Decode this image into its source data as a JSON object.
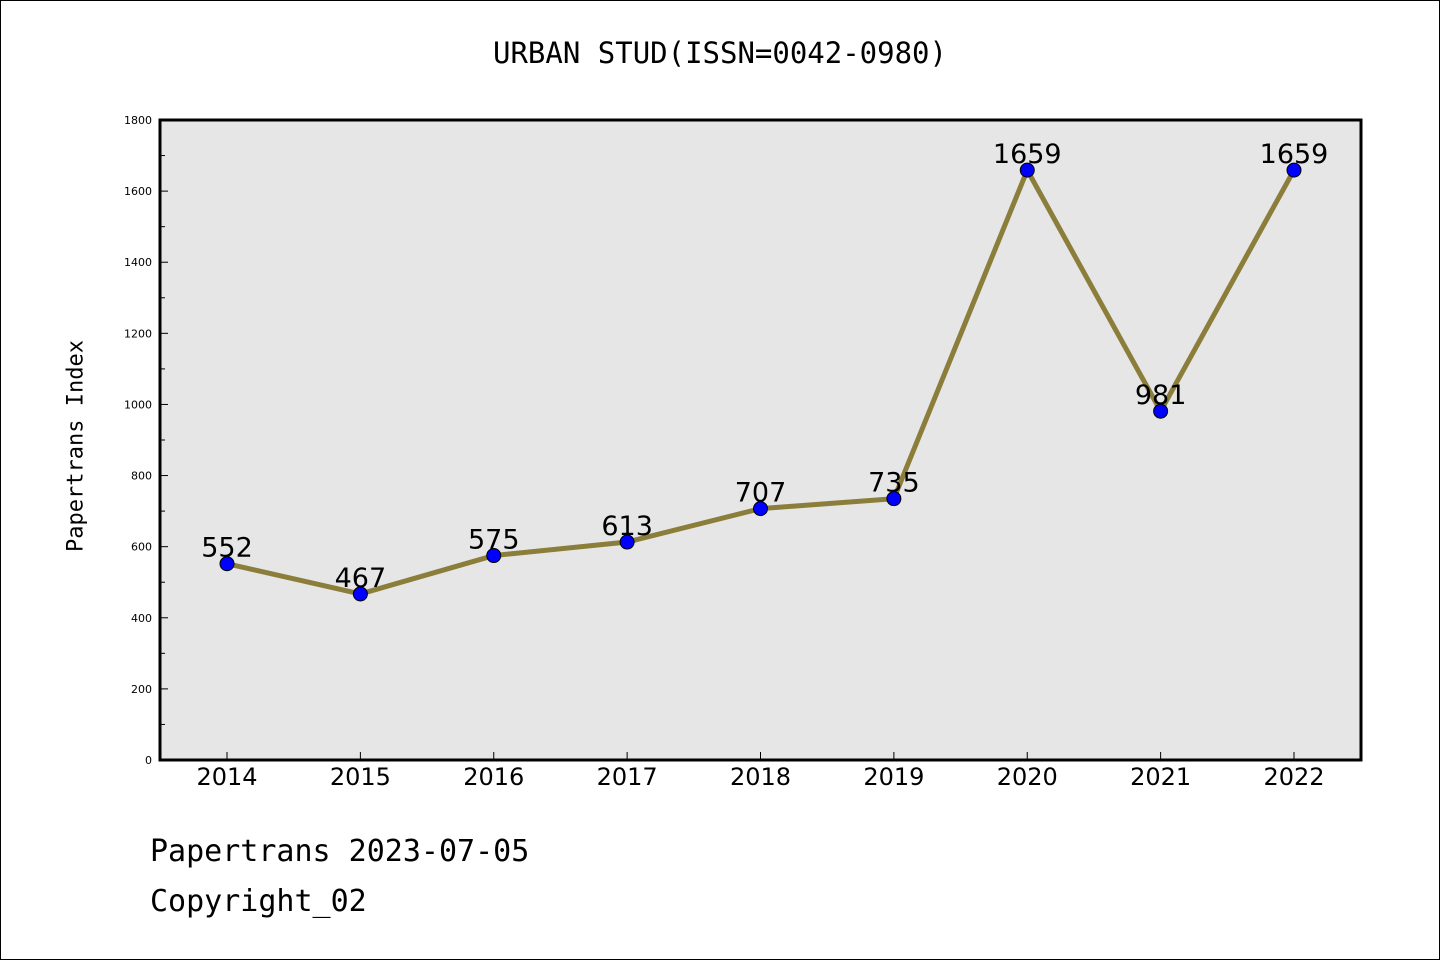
{
  "chart_data": {
    "type": "line",
    "title": "URBAN STUD(ISSN=0042-0980)",
    "xlabel": "",
    "ylabel": "Papertrans Index",
    "categories": [
      "2014",
      "2015",
      "2016",
      "2017",
      "2018",
      "2019",
      "2020",
      "2021",
      "2022"
    ],
    "series": [
      {
        "values": [
          552,
          467,
          575,
          613,
          707,
          735,
          1659,
          981,
          1659
        ]
      }
    ],
    "ylim": [
      0,
      1800
    ],
    "yticks": [
      0,
      200,
      400,
      600,
      800,
      1000,
      1200,
      1400,
      1600,
      1800
    ],
    "data_labels": true,
    "grid": false,
    "line_color": "#8b7d3a",
    "marker_color": "#0000ff",
    "plot_background": "#e6e6e6"
  },
  "footer": {
    "date_text": "Papertrans 2023-07-05",
    "copyright_text": "Copyright_02"
  }
}
